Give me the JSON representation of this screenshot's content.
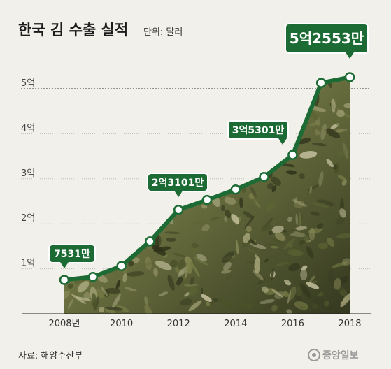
{
  "header": {
    "title": "한국 김 수출 실적",
    "unit": "단위: 달러"
  },
  "footer": {
    "source": "자료: 해양수산부",
    "logo": "중앙일보"
  },
  "colors": {
    "line": "#1c6b34",
    "callout": "#1c6b34",
    "marker_fill": "#ffffff",
    "area_light": "#b9b59a",
    "area_mid": "#6b7140",
    "area_dark": "#34381f",
    "grid": "#bdbdbd"
  },
  "chart_data": {
    "type": "area",
    "title": "한국 김 수출 실적",
    "ylabel": "단위: 달러",
    "x": [
      2008,
      2009,
      2010,
      2011,
      2012,
      2013,
      2014,
      2015,
      2016,
      2017,
      2018
    ],
    "x_tick_labels": [
      {
        "x": 2008,
        "label": "2008년"
      },
      {
        "x": 2010,
        "label": "2010"
      },
      {
        "x": 2012,
        "label": "2012"
      },
      {
        "x": 2014,
        "label": "2014"
      },
      {
        "x": 2016,
        "label": "2016"
      },
      {
        "x": 2018,
        "label": "2018"
      }
    ],
    "y_ticks": [
      {
        "value": 100000000,
        "label": "1억"
      },
      {
        "value": 200000000,
        "label": "2억"
      },
      {
        "value": 300000000,
        "label": "3억"
      },
      {
        "value": 400000000,
        "label": "4억"
      },
      {
        "value": 500000000,
        "label": "5억"
      }
    ],
    "ylim": [
      0,
      500000000
    ],
    "grid": "dotted horizontal",
    "series": [
      {
        "values": [
          75310000,
          82000000,
          106000000,
          161000000,
          231010000,
          253000000,
          276000000,
          304000000,
          353010000,
          513000000,
          525530000
        ]
      }
    ],
    "annotations": [
      {
        "x": 2008,
        "label": "7531만"
      },
      {
        "x": 2012,
        "label": "2억3101만"
      },
      {
        "x": 2016,
        "label": "3억5301만"
      },
      {
        "x": 2018,
        "label": "5억2553만"
      }
    ]
  }
}
